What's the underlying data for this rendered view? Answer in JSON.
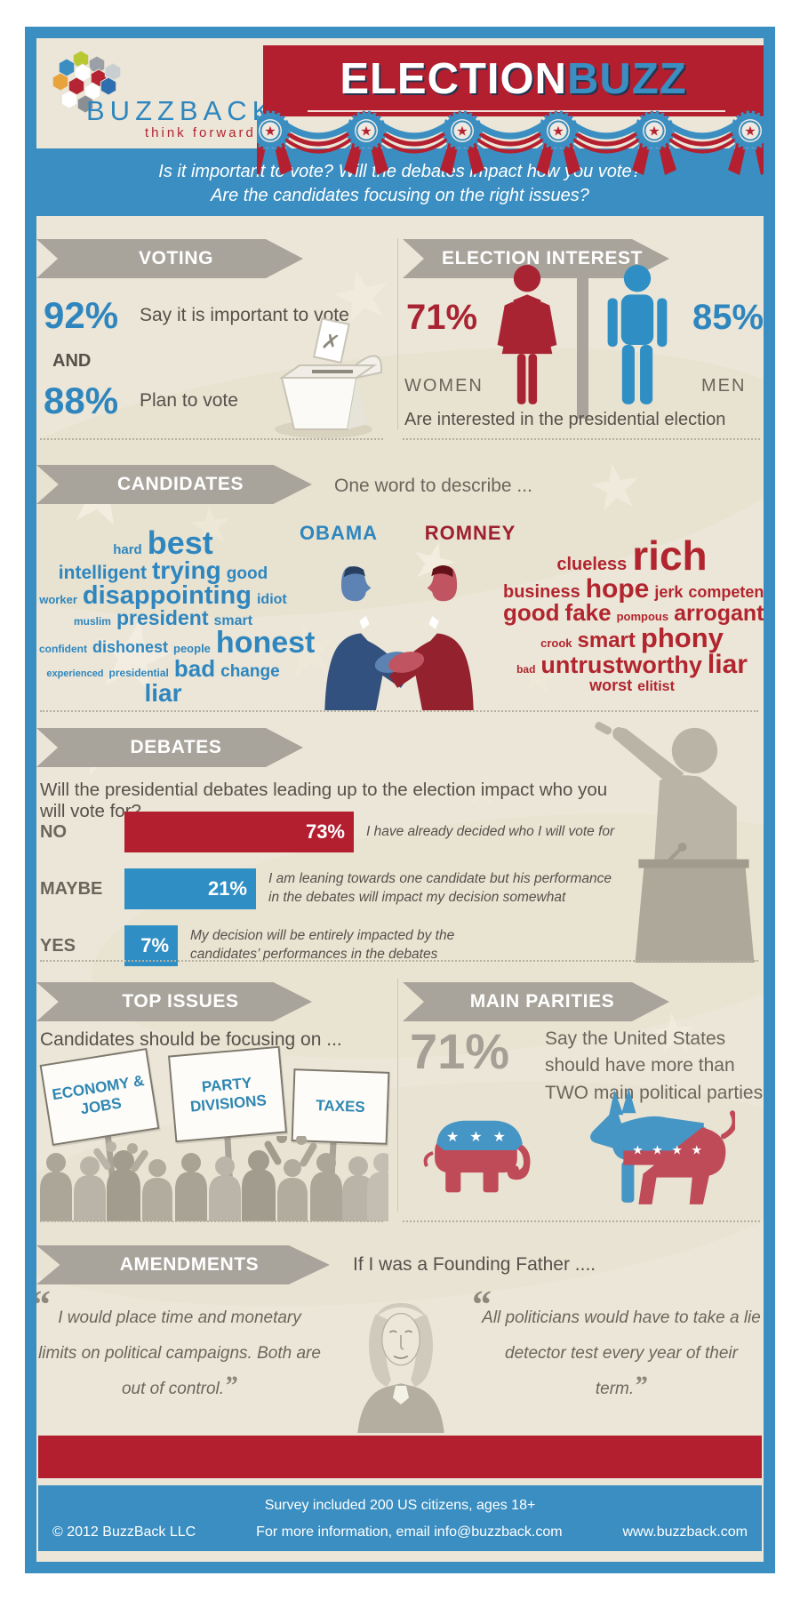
{
  "header": {
    "logo": {
      "brand": "BUZZBACK",
      "tagline": "think forward"
    },
    "title_white": "ELECTION",
    "title_blue": "BUZZ",
    "intro_line1": "Is it important to vote? Will the debates impact how you vote?",
    "intro_line2": "Are the candidates focusing on the right issues?"
  },
  "voting": {
    "section_title": "VOTING",
    "stat1_value": "92%",
    "stat1_label": "Say it is important to vote",
    "connector": "AND",
    "stat2_value": "88%",
    "stat2_label": "Plan to vote"
  },
  "election_interest": {
    "section_title": "ELECTION INTEREST",
    "women_value": "71%",
    "women_label": "WOMEN",
    "men_value": "85%",
    "men_label": "MEN",
    "caption": "Are interested in the presidential election"
  },
  "candidates": {
    "section_title": "CANDIDATES",
    "prompt": "One word to describe ...",
    "obama_label": "OBAMA",
    "romney_label": "ROMNEY",
    "obama_words": [
      {
        "t": "hard",
        "s": 15
      },
      {
        "t": "best",
        "s": 36,
        "br": true
      },
      {
        "t": "intelligent",
        "s": 21
      },
      {
        "t": "trying",
        "s": 28
      },
      {
        "t": "good",
        "s": 19,
        "br": true
      },
      {
        "t": "worker",
        "s": 13
      },
      {
        "t": "disappointing",
        "s": 29
      },
      {
        "t": "idiot",
        "s": 16,
        "br": true
      },
      {
        "t": "muslim",
        "s": 12
      },
      {
        "t": "president",
        "s": 23
      },
      {
        "t": "smart",
        "s": 16,
        "br": true
      },
      {
        "t": "confident",
        "s": 12
      },
      {
        "t": "dishonest",
        "s": 18
      },
      {
        "t": "people",
        "s": 13
      },
      {
        "t": "honest",
        "s": 34,
        "br": true
      },
      {
        "t": "experienced",
        "s": 11
      },
      {
        "t": "presidential",
        "s": 12
      },
      {
        "t": "bad",
        "s": 26
      },
      {
        "t": "change",
        "s": 19,
        "br": true
      },
      {
        "t": "liar",
        "s": 28
      }
    ],
    "romney_words": [
      {
        "t": "clueless",
        "s": 20
      },
      {
        "t": "rich",
        "s": 46,
        "br": true
      },
      {
        "t": "business",
        "s": 20
      },
      {
        "t": "hope",
        "s": 30
      },
      {
        "t": "jerk",
        "s": 18
      },
      {
        "t": "competent",
        "s": 18,
        "br": true
      },
      {
        "t": "good",
        "s": 26
      },
      {
        "t": "fake",
        "s": 26
      },
      {
        "t": "pompous",
        "s": 13
      },
      {
        "t": "arrogant",
        "s": 25,
        "br": true
      },
      {
        "t": "crook",
        "s": 13
      },
      {
        "t": "smart",
        "s": 24
      },
      {
        "t": "phony",
        "s": 31,
        "br": true
      },
      {
        "t": "bad",
        "s": 12
      },
      {
        "t": "untrustworthy",
        "s": 27
      },
      {
        "t": "liar",
        "s": 30,
        "br": true
      },
      {
        "t": "worst",
        "s": 18
      },
      {
        "t": "elitist",
        "s": 16
      }
    ]
  },
  "debates": {
    "section_title": "DEBATES",
    "question": "Will the presidential debates leading up to the election impact who you will vote for?",
    "rows": [
      {
        "label": "NO",
        "value": "73%",
        "description": "I have already decided who I will vote for"
      },
      {
        "label": "MAYBE",
        "value": "21%",
        "description": "I am leaning towards one candidate but his performance in the debates will impact my decision somewhat"
      },
      {
        "label": "YES",
        "value": "7%",
        "description": "My decision will be entirely impacted by the candidates’ performances in the debates"
      }
    ]
  },
  "top_issues": {
    "section_title": "TOP ISSUES",
    "caption": "Candidates should be focusing on ...",
    "signs": [
      "ECONOMY & JOBS",
      "PARTY DIVISIONS",
      "TAXES"
    ]
  },
  "main_parities": {
    "section_title": "MAIN PARITIES",
    "value": "71%",
    "caption": "Say the United States should have more than TWO main political parties"
  },
  "amendments": {
    "section_title": "AMENDMENTS",
    "prompt": "If I was a Founding Father ....",
    "quote_left": "I would place time and monetary limits on political campaigns. Both are out of control.",
    "quote_right": "All politicians would have to take a lie detector test every year of their term."
  },
  "footer": {
    "survey_note": "Survey included 200 US citizens, ages 18+",
    "copyright": "© 2012 BuzzBack LLC",
    "contact": "For more information, email info@buzzback.com",
    "website": "www.buzzback.com"
  },
  "icons": {
    "star": "★",
    "cross": "✗",
    "open_quote": "“",
    "close_quote": "”"
  },
  "colors": {
    "frame_blue": "#3A8EC1",
    "banner_red": "#B41F30",
    "background": "#EBE6D7",
    "ribbon_gray": "#A9A49B",
    "blue_text": "#2F86BE",
    "red_text": "#A92432",
    "dark_text": "#55514A",
    "muted_gray": "#A5A096"
  },
  "chart_data": [
    {
      "type": "bar",
      "title": "Will the presidential debates leading up to the election impact who you will vote for?",
      "categories": [
        "NO",
        "MAYBE",
        "YES"
      ],
      "values": [
        73,
        21,
        7
      ],
      "unit": "%",
      "bar_colors": [
        "#B41F30",
        "#2F8FC4",
        "#2F8FC4"
      ],
      "annotations": [
        "I have already decided who I will vote for",
        "I am leaning towards one candidate but his performance in the debates will impact my decision somewhat",
        "My decision will be entirely impacted by the candidates’ performances in the debates"
      ],
      "legend_position": "none",
      "grid": false
    },
    {
      "type": "table",
      "title": "Voting",
      "rows": [
        [
          "Say it is important to vote",
          92
        ],
        [
          "Plan to vote",
          88
        ]
      ],
      "unit": "%"
    },
    {
      "type": "table",
      "title": "Election interest — interested in the presidential election",
      "rows": [
        [
          "Women",
          71
        ],
        [
          "Men",
          85
        ]
      ],
      "unit": "%"
    },
    {
      "type": "table",
      "title": "Main parties",
      "rows": [
        [
          "Say the United States should have more than TWO main political parties",
          71
        ]
      ],
      "unit": "%"
    }
  ]
}
